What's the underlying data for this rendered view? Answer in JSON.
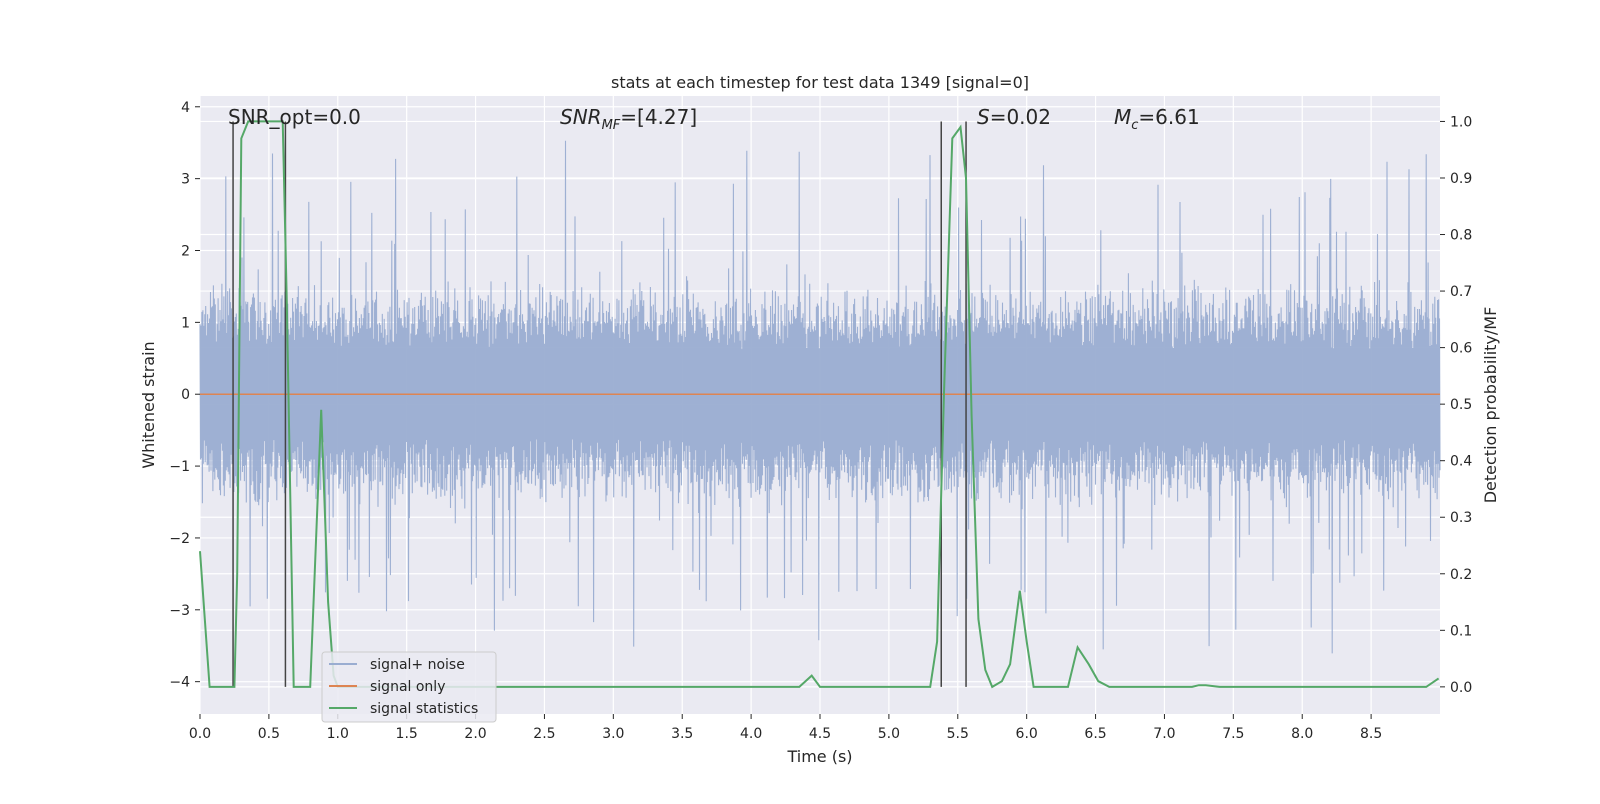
{
  "chart_data": {
    "type": "line",
    "title": "stats at each timestep for test data 1349 [signal=0]",
    "xlabel": "Time (s)",
    "ylabel": "Whitened strain",
    "y2label": "Detection probability/MF",
    "xlim": [
      0,
      9.0
    ],
    "ylim": [
      -4.45,
      4.15
    ],
    "y2lim": [
      -0.048,
      1.045
    ],
    "x_ticks": [
      "0.0",
      "0.5",
      "1.0",
      "1.5",
      "2.0",
      "2.5",
      "3.0",
      "3.5",
      "4.0",
      "4.5",
      "5.0",
      "5.5",
      "6.0",
      "6.5",
      "7.0",
      "7.5",
      "8.0",
      "8.5"
    ],
    "y_ticks": [
      "−4",
      "−3",
      "−2",
      "−1",
      "0",
      "1",
      "2",
      "3",
      "4"
    ],
    "y2_ticks": [
      "0.0",
      "0.1",
      "0.2",
      "0.3",
      "0.4",
      "0.5",
      "0.6",
      "0.7",
      "0.8",
      "0.9",
      "1.0"
    ],
    "grid": true,
    "legend_position": "lower-left",
    "annotations": {
      "snr_opt": "SNR_opt=0.0",
      "snr_mf_sym": "SNR",
      "snr_mf_sub": "MF",
      "snr_mf_val": "=[4.27]",
      "s_sym": "S",
      "s_val": "=0.02",
      "mc_sym": "M",
      "mc_sub": "c",
      "mc_val": "=6.61"
    },
    "vertical_markers": [
      0.24,
      0.62,
      5.38,
      5.56
    ],
    "series": [
      {
        "name": "signal+ noise",
        "color": "#9aadd1",
        "axis": "left",
        "description": "whitened noise, approx ±1.6 dense band with spikes to ±3.8",
        "typical_amplitude": 1.6,
        "max_amplitude": 3.75,
        "x_range": [
          0,
          9.0
        ]
      },
      {
        "name": "signal only",
        "color": "#dd8452",
        "axis": "left",
        "x": [
          0,
          9.0
        ],
        "values": [
          0,
          0
        ]
      },
      {
        "name": "signal statistics",
        "color": "#55a868",
        "axis": "right",
        "x": [
          0,
          0.07,
          0.25,
          0.27,
          0.3,
          0.35,
          0.4,
          0.45,
          0.5,
          0.55,
          0.6,
          0.63,
          0.68,
          0.8,
          0.88,
          0.93,
          0.97,
          1.0,
          1.5,
          2.0,
          2.5,
          3.0,
          3.5,
          4.0,
          4.35,
          4.44,
          4.5,
          5.0,
          5.3,
          5.35,
          5.4,
          5.46,
          5.52,
          5.56,
          5.6,
          5.65,
          5.7,
          5.75,
          5.82,
          5.88,
          5.95,
          6.0,
          6.05,
          6.1,
          6.3,
          6.37,
          6.45,
          6.52,
          6.6,
          6.7,
          7.0,
          7.2,
          7.25,
          7.3,
          7.4,
          8.0,
          8.5,
          8.9,
          8.99
        ],
        "values": [
          0.24,
          0.0,
          0.0,
          0.2,
          0.97,
          1.0,
          1.0,
          1.0,
          1.0,
          1.0,
          1.0,
          0.68,
          0.0,
          0.0,
          0.49,
          0.15,
          0.02,
          0.0,
          0.0,
          0.0,
          0.0,
          0.0,
          0.0,
          0.0,
          0.0,
          0.02,
          0.0,
          0.0,
          0.0,
          0.08,
          0.52,
          0.97,
          0.99,
          0.9,
          0.48,
          0.12,
          0.03,
          0.0,
          0.01,
          0.04,
          0.17,
          0.08,
          0.0,
          0.0,
          0.0,
          0.07,
          0.04,
          0.01,
          0.0,
          0.0,
          0.0,
          0.0,
          0.003,
          0.003,
          0.0,
          0.0,
          0.0,
          0.0,
          0.015
        ]
      }
    ]
  }
}
